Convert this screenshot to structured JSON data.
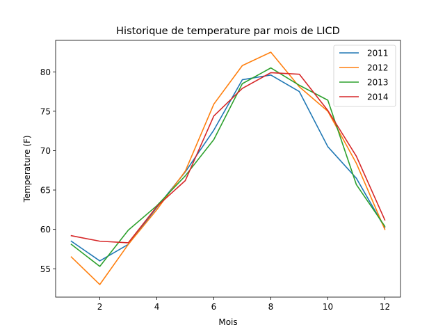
{
  "chart_data": {
    "type": "line",
    "title": "Historique de temperature par mois de LICD",
    "xlabel": "Mois",
    "ylabel": "Temperature (F)",
    "xlim": [
      0.45,
      12.55
    ],
    "ylim": [
      51.4,
      84.0
    ],
    "xticks": [
      2,
      4,
      6,
      8,
      10,
      12
    ],
    "yticks": [
      55,
      60,
      65,
      70,
      75,
      80
    ],
    "legend_position": "top-right",
    "x": [
      1,
      2,
      3,
      4,
      5,
      6,
      7,
      8,
      9,
      10,
      11,
      12
    ],
    "series": [
      {
        "name": "2011",
        "color": "#1f77b4",
        "values": [
          58.5,
          56.0,
          58.1,
          62.8,
          67.3,
          72.6,
          79.0,
          79.6,
          77.5,
          70.5,
          66.5,
          60.2
        ]
      },
      {
        "name": "2012",
        "color": "#ff7f0e",
        "values": [
          56.5,
          53.0,
          58.1,
          62.5,
          67.4,
          75.9,
          80.8,
          82.5,
          78.1,
          75.0,
          68.4,
          60.0
        ]
      },
      {
        "name": "2013",
        "color": "#2ca02c",
        "values": [
          58.1,
          55.3,
          59.9,
          63.0,
          66.8,
          71.4,
          78.5,
          80.5,
          78.3,
          76.4,
          65.7,
          60.4
        ]
      },
      {
        "name": "2014",
        "color": "#d62728",
        "values": [
          59.2,
          58.5,
          58.3,
          62.9,
          66.2,
          74.4,
          77.9,
          79.9,
          79.7,
          75.1,
          69.3,
          61.2
        ]
      }
    ]
  }
}
